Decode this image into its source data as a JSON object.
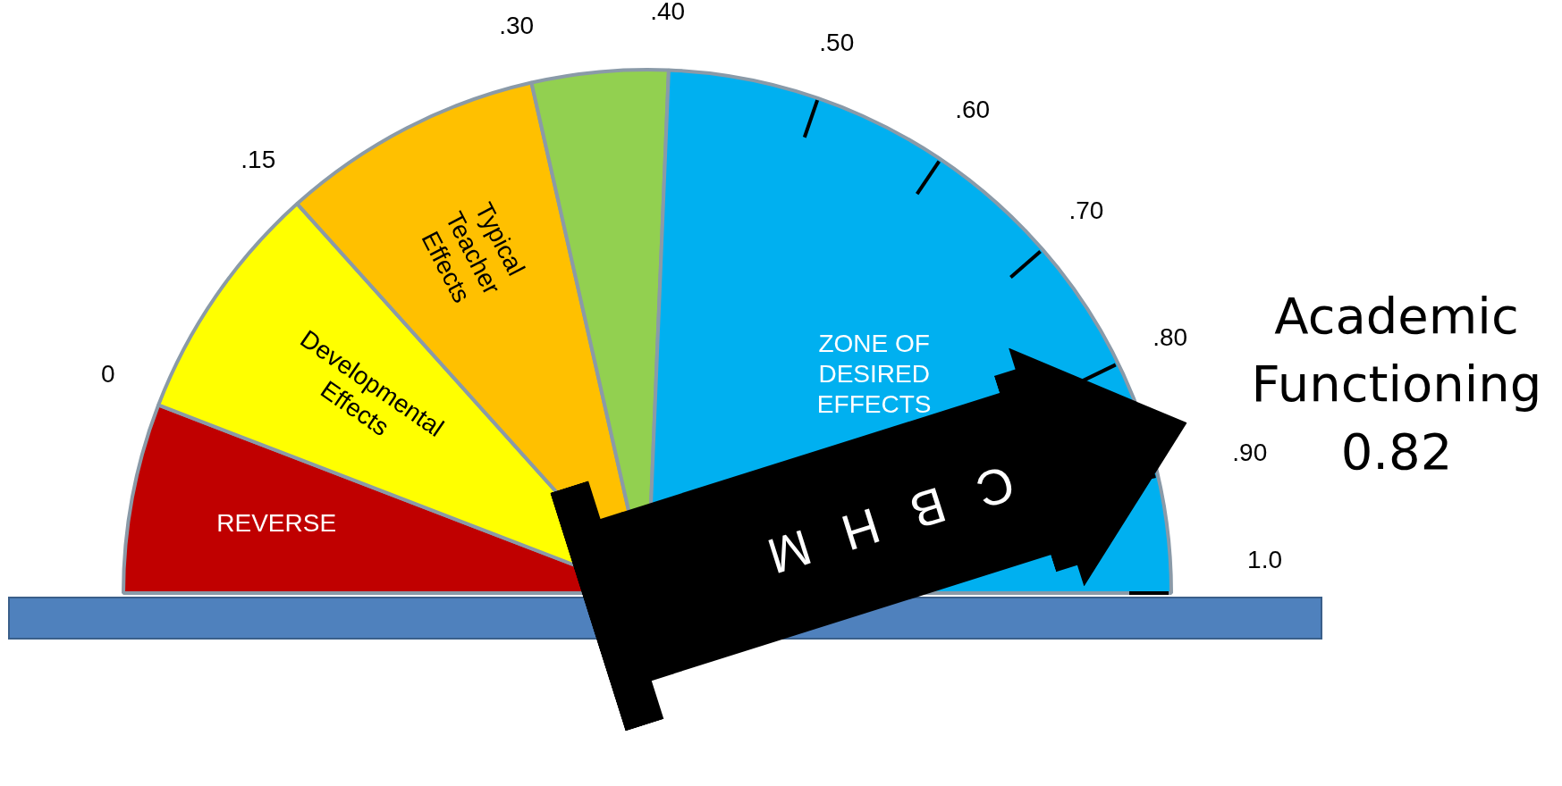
{
  "chart_data": {
    "type": "pie",
    "categories": [
      "REVERSE",
      "Developmental Effects",
      "Typical Teacher Effects",
      null,
      "ZONE OF DESIRED EFFECTS"
    ],
    "values": [
      11.7,
      15,
      16.2,
      8.4,
      48.7
    ],
    "colors": [
      "#c00000",
      "#ffff00",
      "#ffc000",
      "#92d050",
      "#00b0f0"
    ],
    "needle": "ZONE OF DESIRED EFFECTS",
    "annotations": [
      "0",
      ".15",
      ".30",
      ".40",
      ".50",
      ".60",
      ".70",
      ".80",
      ".90",
      "1.0",
      "Academic Functioning 0.82",
      "CBHM"
    ],
    "legend": false
  }
}
